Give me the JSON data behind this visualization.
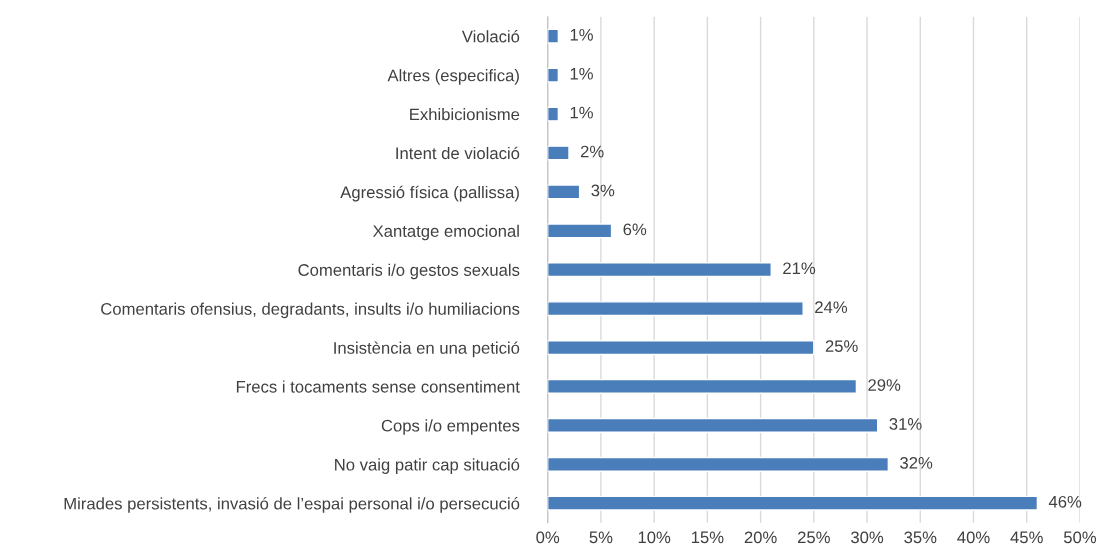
{
  "chart_data": {
    "type": "bar",
    "orientation": "horizontal",
    "categories": [
      "Violació",
      "Altres (especifica)",
      "Exhibicionisme",
      "Intent de violació",
      "Agressió física (pallissa)",
      "Xantatge emocional",
      "Comentaris i/o gestos sexuals",
      "Comentaris ofensius, degradants, insults i/o humiliacions",
      "Insistència en una petició",
      "Frecs i tocaments sense consentiment",
      "Cops i/o empentes",
      "No vaig patir cap situació",
      "Mirades persistents, invasió de l’espai personal i/o persecució"
    ],
    "values": [
      1,
      1,
      1,
      2,
      3,
      6,
      21,
      24,
      25,
      29,
      31,
      32,
      46
    ],
    "value_labels": [
      "1%",
      "1%",
      "1%",
      "2%",
      "3%",
      "6%",
      "21%",
      "24%",
      "25%",
      "29%",
      "31%",
      "32%",
      "46%"
    ],
    "color": "#4a7ebb",
    "xlim": [
      0,
      50
    ],
    "xticks": [
      {
        "value": 0,
        "label": "0%"
      },
      {
        "value": 5,
        "label": "5%"
      },
      {
        "value": 10,
        "label": "10%"
      },
      {
        "value": 15,
        "label": "15%"
      },
      {
        "value": 20,
        "label": "20%"
      },
      {
        "value": 25,
        "label": "25%"
      },
      {
        "value": 30,
        "label": "30%"
      },
      {
        "value": 35,
        "label": "35%"
      },
      {
        "value": 40,
        "label": "40%"
      },
      {
        "value": 45,
        "label": "45%"
      },
      {
        "value": 50,
        "label": "50%"
      }
    ],
    "grid": "x"
  }
}
